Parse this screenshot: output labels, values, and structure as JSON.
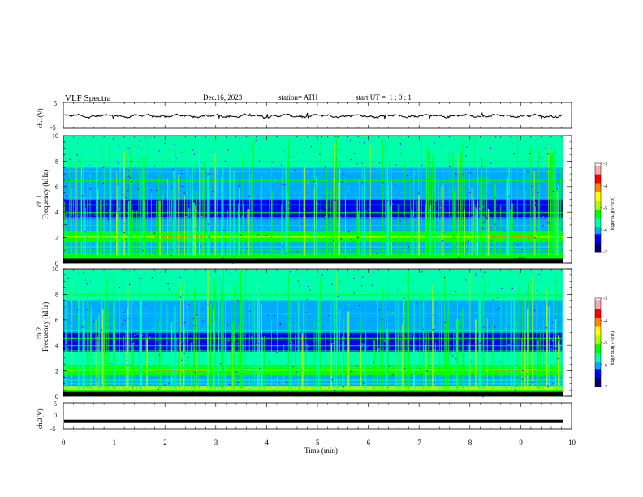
{
  "header": {
    "title": "VLF Spectra",
    "date": "Dec.16, 2023",
    "station": "station= ATH",
    "start": "start UT =  1 : 0 : 1"
  },
  "colors": {
    "colormap": [
      "#00006a",
      "#0000ff",
      "#00aaff",
      "#00ffaa",
      "#00ff00",
      "#aaff00",
      "#ffff00",
      "#ff8800",
      "#ff0000",
      "#ffaaaa",
      "#ffffff"
    ],
    "trace": "#000000"
  },
  "chart_data": [
    {
      "type": "line",
      "name": "ch1-waveform",
      "ylabel": "ch.1(V)",
      "yticks": [
        "5",
        "-5"
      ],
      "ylim": [
        -5,
        5
      ],
      "xlim": [
        0,
        10
      ],
      "description_values": {
        "mean": -0.2,
        "amplitude": 0.6,
        "data_end_min": 9.83
      }
    },
    {
      "type": "heatmap",
      "name": "ch1-spectrogram",
      "ylabel_top": "ch.1",
      "ylabel": "Frequency (kHz)",
      "yticks": [
        "0",
        "2",
        "4",
        "6",
        "8",
        "10"
      ],
      "ylim": [
        0,
        10
      ],
      "xlim": [
        0,
        10
      ],
      "data_end_min": 9.83,
      "colorbar": {
        "label": "log(PSD)(V²/Hz)",
        "ticks": [
          "-3",
          "-4",
          "-5",
          "-6",
          "-7"
        ],
        "range": [
          -7,
          -3
        ]
      }
    },
    {
      "type": "heatmap",
      "name": "ch2-spectrogram",
      "ylabel_top": "ch.2",
      "ylabel": "Frequency (kHz)",
      "yticks": [
        "0",
        "2",
        "4",
        "6",
        "8",
        "10"
      ],
      "ylim": [
        0,
        10
      ],
      "xlim": [
        0,
        10
      ],
      "data_end_min": 9.83,
      "colorbar": {
        "label": "log(PSD)(V²/Hz)",
        "ticks": [
          "-3",
          "-4",
          "-5",
          "-6",
          "-7"
        ],
        "range": [
          -7,
          -3
        ]
      }
    },
    {
      "type": "line",
      "name": "ch3-waveform",
      "ylabel": "ch.3(V)",
      "yticks": [
        "5",
        "0",
        "-5"
      ],
      "ylim": [
        -5,
        5
      ],
      "xlim": [
        0,
        10
      ],
      "xlabel": "Time (min)",
      "xticks": [
        "0",
        "1",
        "2",
        "3",
        "4",
        "5",
        "6",
        "7",
        "8",
        "9",
        "10"
      ],
      "description_values": {
        "level": -2.1,
        "data_end_min": 9.83
      }
    }
  ]
}
